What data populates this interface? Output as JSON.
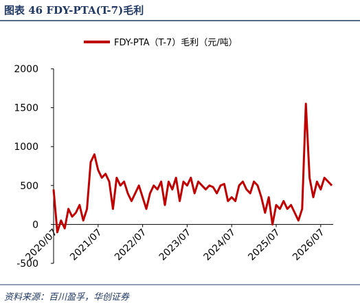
{
  "chart_data": {
    "type": "line",
    "title": "图表 46 FDY-PTA(T-7)毛利",
    "source": "资料来源：百川盈孚，华创证券",
    "x": [
      "2020/07",
      "2020/08",
      "2020/09",
      "2020/10",
      "2020/11",
      "2020/12",
      "2021/01",
      "2021/02",
      "2021/03",
      "2021/04",
      "2021/05",
      "2021/06",
      "2021/07",
      "2021/08",
      "2021/09",
      "2021/10",
      "2021/11",
      "2021/12",
      "2022/01",
      "2022/02",
      "2022/03",
      "2022/04",
      "2022/05",
      "2022/06",
      "2022/07",
      "2022/08",
      "2022/09",
      "2022/10",
      "2022/11",
      "2022/12",
      "2023/01",
      "2023/02",
      "2023/03",
      "2023/04",
      "2023/05",
      "2023/06",
      "2023/07",
      "2023/08",
      "2023/09",
      "2023/10",
      "2023/11",
      "2023/12",
      "2024/01",
      "2024/02",
      "2024/03",
      "2024/04",
      "2024/05",
      "2024/06",
      "2024/07",
      "2024/08",
      "2024/09",
      "2024/10",
      "2024/11",
      "2024/12",
      "2025/01",
      "2025/02",
      "2025/03",
      "2025/04",
      "2025/05",
      "2025/06",
      "2025/07",
      "2025/08",
      "2025/09",
      "2025/10",
      "2025/11",
      "2025/12",
      "2026/01",
      "2026/02",
      "2026/03",
      "2026/04",
      "2026/05",
      "2026/06",
      "2026/07",
      "2026/08",
      "2026/09",
      "2026/10"
    ],
    "series": [
      {
        "name": "FDY-PTA（T-7）毛利（元/吨）",
        "color": "#c00000",
        "values": [
          450,
          -100,
          50,
          -50,
          200,
          100,
          150,
          250,
          50,
          200,
          800,
          900,
          700,
          600,
          650,
          550,
          200,
          600,
          500,
          550,
          400,
          300,
          400,
          500,
          350,
          200,
          400,
          500,
          450,
          550,
          250,
          550,
          450,
          600,
          300,
          550,
          500,
          600,
          400,
          550,
          500,
          450,
          500,
          480,
          400,
          500,
          520,
          300,
          350,
          300,
          500,
          550,
          450,
          400,
          550,
          500,
          350,
          150,
          350,
          0,
          250,
          200,
          300,
          200,
          250,
          150,
          50,
          200,
          1550,
          600,
          350,
          550,
          450,
          600,
          550,
          500
        ]
      }
    ],
    "xticks": [
      "2020/07",
      "2021/07",
      "2022/07",
      "2023/07",
      "2024/07",
      "2025/07",
      "2026/07"
    ],
    "ylim": [
      -500,
      2000
    ],
    "yticks": [
      -500,
      0,
      500,
      1000,
      1500,
      2000
    ]
  }
}
